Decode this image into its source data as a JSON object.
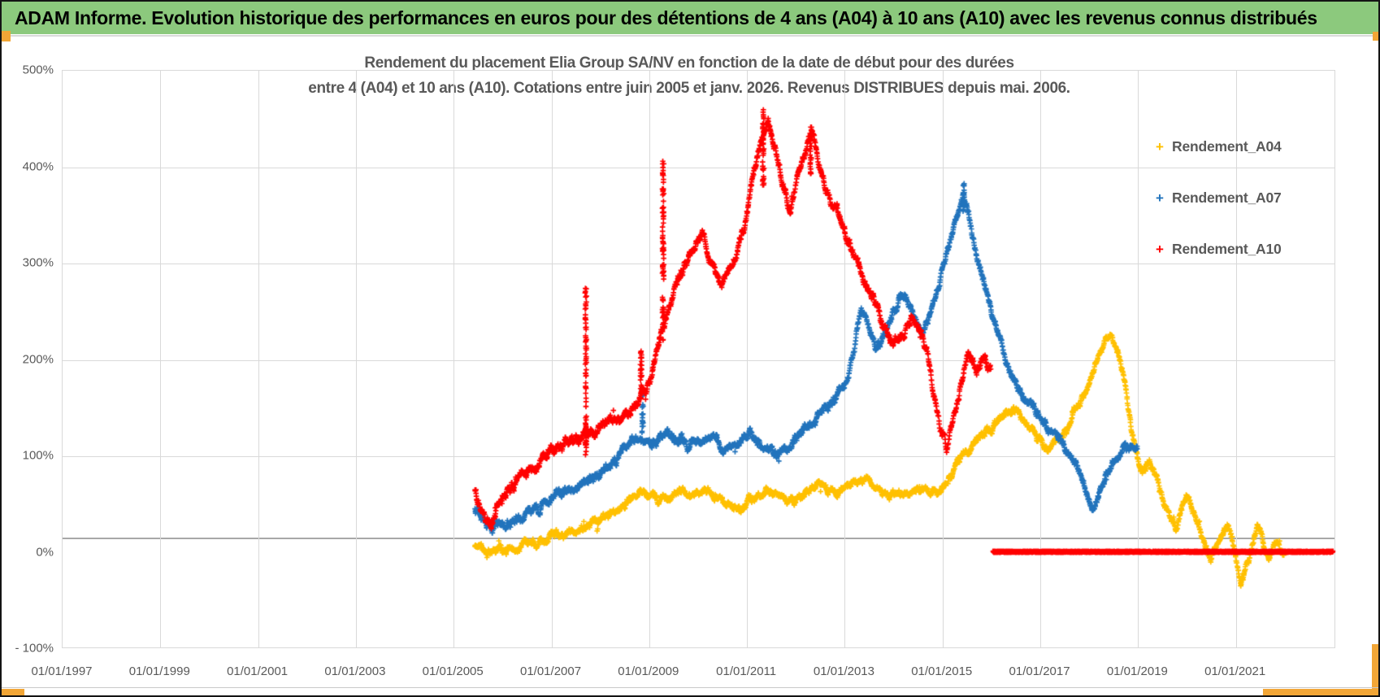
{
  "header": {
    "title": "ADAM Informe. Evolution historique des performances en euros pour des détentions de 4 ans (A04) à 10 ans (A10) avec les revenus connus distribués",
    "bg_color": "#8cc97d"
  },
  "accent_color": "#f2a636",
  "chart_data": {
    "type": "scatter",
    "title_line1": "Rendement du placement Elia Group SA/NV en fonction de la date de début pour des durées",
    "title_line2": "entre 4 (A04) et 10 ans (A10). Cotations entre juin 2005 et janv. 2026. Revenus DISTRIBUES depuis mai. 2006.",
    "marker": "plus",
    "grid": true,
    "legend_position": "right",
    "x_axis": {
      "t_min": 1997.0,
      "t_max": 2023.05,
      "tick_years": [
        1997,
        1999,
        2001,
        2003,
        2005,
        2007,
        2009,
        2011,
        2013,
        2015,
        2017,
        2019,
        2021
      ],
      "tick_labels": [
        "01/01/1997",
        "01/01/1999",
        "01/01/2001",
        "01/01/2003",
        "01/01/2005",
        "01/01/2007",
        "01/01/2009",
        "01/01/2011",
        "01/01/2013",
        "01/01/2015",
        "01/01/2017",
        "01/01/2019",
        "01/01/2021"
      ]
    },
    "y_axis": {
      "v_min": -100,
      "v_max": 500,
      "tick_values": [
        500,
        400,
        300,
        200,
        100,
        0,
        -100
      ],
      "tick_labels": [
        "500%",
        "400%",
        "300%",
        "200%",
        "100%",
        "0%",
        "- 100%"
      ],
      "extra_axis_line_value": 16
    },
    "legend": [
      {
        "name": "Rendement_A04",
        "color": "#FFC000"
      },
      {
        "name": "Rendement_A07",
        "color": "#2173BC"
      },
      {
        "name": "Rendement_A10",
        "color": "#FF0000"
      }
    ],
    "series": [
      {
        "name": "Rendement_A04",
        "color": "#FFC000",
        "noise": 4.5,
        "t_start": 2005.45,
        "t_end": 2022.0,
        "waypoints": [
          [
            2005.45,
            8
          ],
          [
            2005.6,
            3
          ],
          [
            2005.8,
            1
          ],
          [
            2006.1,
            4
          ],
          [
            2006.4,
            6
          ],
          [
            2006.7,
            10
          ],
          [
            2007.0,
            15
          ],
          [
            2007.3,
            19
          ],
          [
            2007.6,
            24
          ],
          [
            2007.9,
            31
          ],
          [
            2008.1,
            36
          ],
          [
            2008.4,
            47
          ],
          [
            2008.7,
            57
          ],
          [
            2008.9,
            63
          ],
          [
            2009.1,
            56
          ],
          [
            2009.3,
            52
          ],
          [
            2009.5,
            59
          ],
          [
            2009.7,
            62
          ],
          [
            2009.9,
            55
          ],
          [
            2010.1,
            59
          ],
          [
            2010.3,
            62
          ],
          [
            2010.5,
            54
          ],
          [
            2010.7,
            45
          ],
          [
            2010.9,
            43
          ],
          [
            2011.1,
            53
          ],
          [
            2011.3,
            59
          ],
          [
            2011.5,
            62
          ],
          [
            2011.7,
            54
          ],
          [
            2011.9,
            49
          ],
          [
            2012.1,
            56
          ],
          [
            2012.3,
            63
          ],
          [
            2012.5,
            68
          ],
          [
            2012.7,
            64
          ],
          [
            2012.9,
            63
          ],
          [
            2013.1,
            70
          ],
          [
            2013.3,
            76
          ],
          [
            2013.5,
            76
          ],
          [
            2013.7,
            68
          ],
          [
            2013.9,
            60
          ],
          [
            2014.1,
            59
          ],
          [
            2014.3,
            64
          ],
          [
            2014.5,
            68
          ],
          [
            2014.7,
            62
          ],
          [
            2014.9,
            63
          ],
          [
            2015.1,
            74
          ],
          [
            2015.3,
            92
          ],
          [
            2015.5,
            105
          ],
          [
            2015.7,
            114
          ],
          [
            2015.9,
            124
          ],
          [
            2016.1,
            134
          ],
          [
            2016.3,
            144
          ],
          [
            2016.45,
            150
          ],
          [
            2016.6,
            140
          ],
          [
            2016.8,
            127
          ],
          [
            2017.0,
            116
          ],
          [
            2017.2,
            105
          ],
          [
            2017.4,
            117
          ],
          [
            2017.6,
            131
          ],
          [
            2017.8,
            149
          ],
          [
            2018.0,
            170
          ],
          [
            2018.15,
            194
          ],
          [
            2018.3,
            214
          ],
          [
            2018.45,
            223
          ],
          [
            2018.6,
            206
          ],
          [
            2018.7,
            186
          ],
          [
            2018.8,
            152
          ],
          [
            2018.9,
            122
          ],
          [
            2019.0,
            97
          ],
          [
            2019.1,
            82
          ],
          [
            2019.25,
            96
          ],
          [
            2019.4,
            72
          ],
          [
            2019.55,
            46
          ],
          [
            2019.7,
            29
          ],
          [
            2019.8,
            23
          ],
          [
            2019.9,
            44
          ],
          [
            2020.0,
            57
          ],
          [
            2020.1,
            48
          ],
          [
            2020.25,
            30
          ],
          [
            2020.35,
            9
          ],
          [
            2020.5,
            -5
          ],
          [
            2020.6,
            6
          ],
          [
            2020.7,
            19
          ],
          [
            2020.85,
            27
          ],
          [
            2020.95,
            8
          ],
          [
            2021.05,
            -21
          ],
          [
            2021.12,
            -32
          ],
          [
            2021.2,
            -19
          ],
          [
            2021.3,
            -4
          ],
          [
            2021.4,
            17
          ],
          [
            2021.45,
            23
          ],
          [
            2021.55,
            12
          ],
          [
            2021.62,
            -2
          ],
          [
            2021.7,
            -7
          ],
          [
            2021.8,
            9
          ],
          [
            2021.9,
            9
          ],
          [
            2022.0,
            -2
          ]
        ],
        "spikes": []
      },
      {
        "name": "Rendement_A07",
        "color": "#2173BC",
        "noise": 5,
        "t_start": 2005.45,
        "t_end": 2019.0,
        "waypoints": [
          [
            2005.45,
            44
          ],
          [
            2005.6,
            33
          ],
          [
            2005.8,
            25
          ],
          [
            2006.0,
            29
          ],
          [
            2006.3,
            34
          ],
          [
            2006.6,
            41
          ],
          [
            2006.9,
            51
          ],
          [
            2007.2,
            61
          ],
          [
            2007.5,
            67
          ],
          [
            2007.8,
            74
          ],
          [
            2008.0,
            81
          ],
          [
            2008.3,
            94
          ],
          [
            2008.6,
            110
          ],
          [
            2008.8,
            117
          ],
          [
            2009.0,
            111
          ],
          [
            2009.2,
            117
          ],
          [
            2009.4,
            124
          ],
          [
            2009.6,
            117
          ],
          [
            2009.8,
            108
          ],
          [
            2010.0,
            114
          ],
          [
            2010.2,
            121
          ],
          [
            2010.4,
            117
          ],
          [
            2010.6,
            104
          ],
          [
            2010.8,
            111
          ],
          [
            2011.0,
            124
          ],
          [
            2011.2,
            117
          ],
          [
            2011.4,
            107
          ],
          [
            2011.6,
            99
          ],
          [
            2011.8,
            107
          ],
          [
            2012.0,
            117
          ],
          [
            2012.2,
            127
          ],
          [
            2012.4,
            134
          ],
          [
            2012.6,
            147
          ],
          [
            2012.8,
            157
          ],
          [
            2013.0,
            171
          ],
          [
            2013.2,
            207
          ],
          [
            2013.35,
            252
          ],
          [
            2013.5,
            236
          ],
          [
            2013.65,
            214
          ],
          [
            2013.8,
            224
          ],
          [
            2014.0,
            249
          ],
          [
            2014.2,
            268
          ],
          [
            2014.4,
            249
          ],
          [
            2014.6,
            226
          ],
          [
            2014.8,
            251
          ],
          [
            2015.0,
            288
          ],
          [
            2015.15,
            318
          ],
          [
            2015.3,
            348
          ],
          [
            2015.45,
            368
          ],
          [
            2015.55,
            349
          ],
          [
            2015.7,
            309
          ],
          [
            2015.85,
            279
          ],
          [
            2016.0,
            254
          ],
          [
            2016.15,
            229
          ],
          [
            2016.3,
            199
          ],
          [
            2016.5,
            176
          ],
          [
            2016.7,
            159
          ],
          [
            2016.9,
            147
          ],
          [
            2017.1,
            133
          ],
          [
            2017.3,
            119
          ],
          [
            2017.5,
            109
          ],
          [
            2017.7,
            96
          ],
          [
            2017.85,
            79
          ],
          [
            2018.0,
            58
          ],
          [
            2018.1,
            46
          ],
          [
            2018.25,
            66
          ],
          [
            2018.4,
            86
          ],
          [
            2018.55,
            99
          ],
          [
            2018.7,
            108
          ],
          [
            2018.85,
            104
          ],
          [
            2019.0,
            107
          ]
        ],
        "spikes": [
          [
            2008.88,
            122,
            172
          ],
          [
            2015.45,
            350,
            382
          ]
        ]
      },
      {
        "name": "Rendement_A10",
        "color": "#FF0000",
        "noise": 6,
        "t_start": 2005.45,
        "t_end": 2016.0,
        "waypoints": [
          [
            2005.45,
            64
          ],
          [
            2005.6,
            43
          ],
          [
            2005.75,
            29
          ],
          [
            2006.0,
            54
          ],
          [
            2006.3,
            74
          ],
          [
            2006.7,
            91
          ],
          [
            2007.0,
            104
          ],
          [
            2007.3,
            113
          ],
          [
            2007.6,
            121
          ],
          [
            2008.0,
            130
          ],
          [
            2008.4,
            141
          ],
          [
            2008.8,
            156
          ],
          [
            2009.0,
            173
          ],
          [
            2009.2,
            213
          ],
          [
            2009.35,
            243
          ],
          [
            2009.5,
            268
          ],
          [
            2009.7,
            291
          ],
          [
            2009.9,
            311
          ],
          [
            2010.1,
            329
          ],
          [
            2010.3,
            299
          ],
          [
            2010.5,
            277
          ],
          [
            2010.7,
            304
          ],
          [
            2010.9,
            329
          ],
          [
            2011.0,
            344
          ],
          [
            2011.15,
            389
          ],
          [
            2011.3,
            428
          ],
          [
            2011.45,
            448
          ],
          [
            2011.6,
            419
          ],
          [
            2011.75,
            379
          ],
          [
            2011.9,
            356
          ],
          [
            2012.05,
            389
          ],
          [
            2012.2,
            419
          ],
          [
            2012.35,
            434
          ],
          [
            2012.5,
            404
          ],
          [
            2012.65,
            379
          ],
          [
            2012.8,
            359
          ],
          [
            2013.0,
            339
          ],
          [
            2013.2,
            309
          ],
          [
            2013.4,
            284
          ],
          [
            2013.6,
            264
          ],
          [
            2013.8,
            234
          ],
          [
            2014.0,
            214
          ],
          [
            2014.2,
            226
          ],
          [
            2014.4,
            244
          ],
          [
            2014.55,
            229
          ],
          [
            2014.7,
            204
          ],
          [
            2014.85,
            159
          ],
          [
            2015.0,
            119
          ],
          [
            2015.1,
            104
          ],
          [
            2015.25,
            141
          ],
          [
            2015.4,
            176
          ],
          [
            2015.55,
            204
          ],
          [
            2015.7,
            189
          ],
          [
            2015.85,
            199
          ],
          [
            2016.0,
            189
          ]
        ],
        "spikes": [
          [
            2007.72,
            98,
            278
          ],
          [
            2008.85,
            158,
            212
          ],
          [
            2009.3,
            215,
            406
          ],
          [
            2011.35,
            380,
            460
          ],
          [
            2012.32,
            392,
            446
          ]
        ],
        "zero_segment": [
          2016.05,
          2023.0
        ]
      }
    ]
  }
}
